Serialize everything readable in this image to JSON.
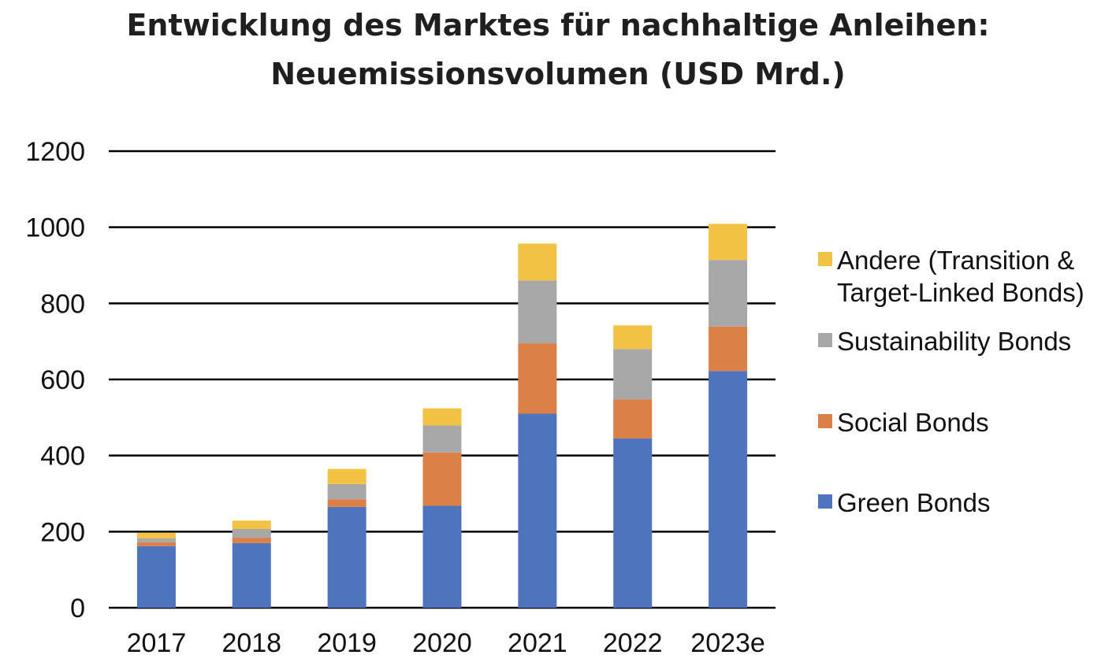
{
  "chart_data": {
    "type": "bar",
    "stacked": true,
    "title_line1": "Entwicklung des Marktes für nachhaltige Anleihen:",
    "title_line2": "Neuemissionsvolumen (USD Mrd.)",
    "categories": [
      "2017",
      "2018",
      "2019",
      "2020",
      "2021",
      "2022",
      "2023e"
    ],
    "ylim": [
      0,
      1200
    ],
    "yticks": [
      0,
      200,
      400,
      600,
      800,
      1000,
      1200
    ],
    "grid": true,
    "legend_position": "right",
    "series": [
      {
        "name": "Green Bonds",
        "color": "#4f74be",
        "values": [
          162,
          170,
          265,
          268,
          510,
          445,
          622
        ]
      },
      {
        "name": "Social Bonds",
        "color": "#db8046",
        "values": [
          10,
          14,
          20,
          140,
          185,
          103,
          117
        ]
      },
      {
        "name": "Sustainability Bonds",
        "color": "#a8a8a8",
        "values": [
          10,
          23,
          40,
          71,
          165,
          132,
          175
        ]
      },
      {
        "name": "Andere (Transition & Target-Linked Bonds)",
        "legend_lines": [
          "Andere (Transition &",
          "Target-Linked Bonds)"
        ],
        "color": "#f3c244",
        "values": [
          15,
          22,
          40,
          45,
          97,
          62,
          95
        ]
      }
    ]
  }
}
